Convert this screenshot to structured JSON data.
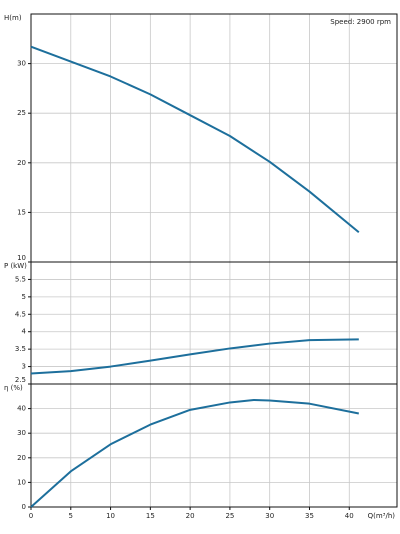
{
  "chart_data": [
    {
      "type": "line",
      "annotation": "Speed: 2900 rpm",
      "y_label": "H(m)",
      "x": [
        0,
        5,
        10,
        15,
        20,
        25,
        30,
        35,
        41.2
      ],
      "series": [
        {
          "color": "#1d6f9c",
          "values": [
            31.7,
            30.2,
            28.7,
            26.9,
            24.8,
            22.7,
            20.1,
            17.1,
            13.0
          ]
        }
      ],
      "xlim": [
        0,
        46
      ],
      "ylim": [
        10,
        35
      ],
      "yticks": [
        10,
        15,
        20,
        25,
        30
      ],
      "grid": true
    },
    {
      "type": "line",
      "y_label": "P (kW)",
      "x": [
        0,
        5,
        10,
        15,
        20,
        25,
        30,
        35,
        41.2
      ],
      "series": [
        {
          "color": "#1d6f9c",
          "values": [
            2.8,
            2.87,
            3.0,
            3.17,
            3.35,
            3.52,
            3.66,
            3.76,
            3.78
          ]
        }
      ],
      "xlim": [
        0,
        46
      ],
      "ylim": [
        2.5,
        6
      ],
      "yticks": [
        2.5,
        3,
        3.5,
        4,
        4.5,
        5,
        5.5
      ],
      "grid": true
    },
    {
      "type": "line",
      "y_label": "η (%)",
      "x_label": "Q(m³/h)",
      "x": [
        0,
        5,
        10,
        15,
        20,
        25,
        28,
        30,
        35,
        41.2
      ],
      "series": [
        {
          "color": "#1d6f9c",
          "values": [
            0,
            14.5,
            25.5,
            33.5,
            39.5,
            42.5,
            43.5,
            43.3,
            42,
            38
          ]
        }
      ],
      "xlim": [
        0,
        46
      ],
      "ylim": [
        0,
        50
      ],
      "xticks": [
        0,
        5,
        10,
        15,
        20,
        25,
        30,
        35,
        40
      ],
      "yticks": [
        0,
        10,
        20,
        30,
        40
      ],
      "grid": true
    }
  ]
}
